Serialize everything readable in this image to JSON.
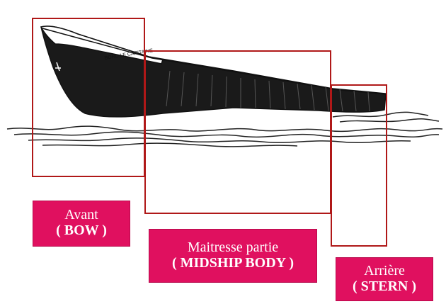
{
  "diagram": {
    "hull_name": "BORD LE CAPITAINE",
    "sections": [
      {
        "id": "bow",
        "label_fr": "Avant",
        "label_en": "( BOW )"
      },
      {
        "id": "midship",
        "label_fr": "Maitresse partie",
        "label_en": "( MIDSHIP BODY )"
      },
      {
        "id": "stern",
        "label_fr": "Arrière",
        "label_en": "( STERN )"
      }
    ],
    "colors": {
      "box_border": "#b01818",
      "label_background": "#e0105f",
      "label_text": "#ffffff",
      "ink": "#111111"
    }
  }
}
